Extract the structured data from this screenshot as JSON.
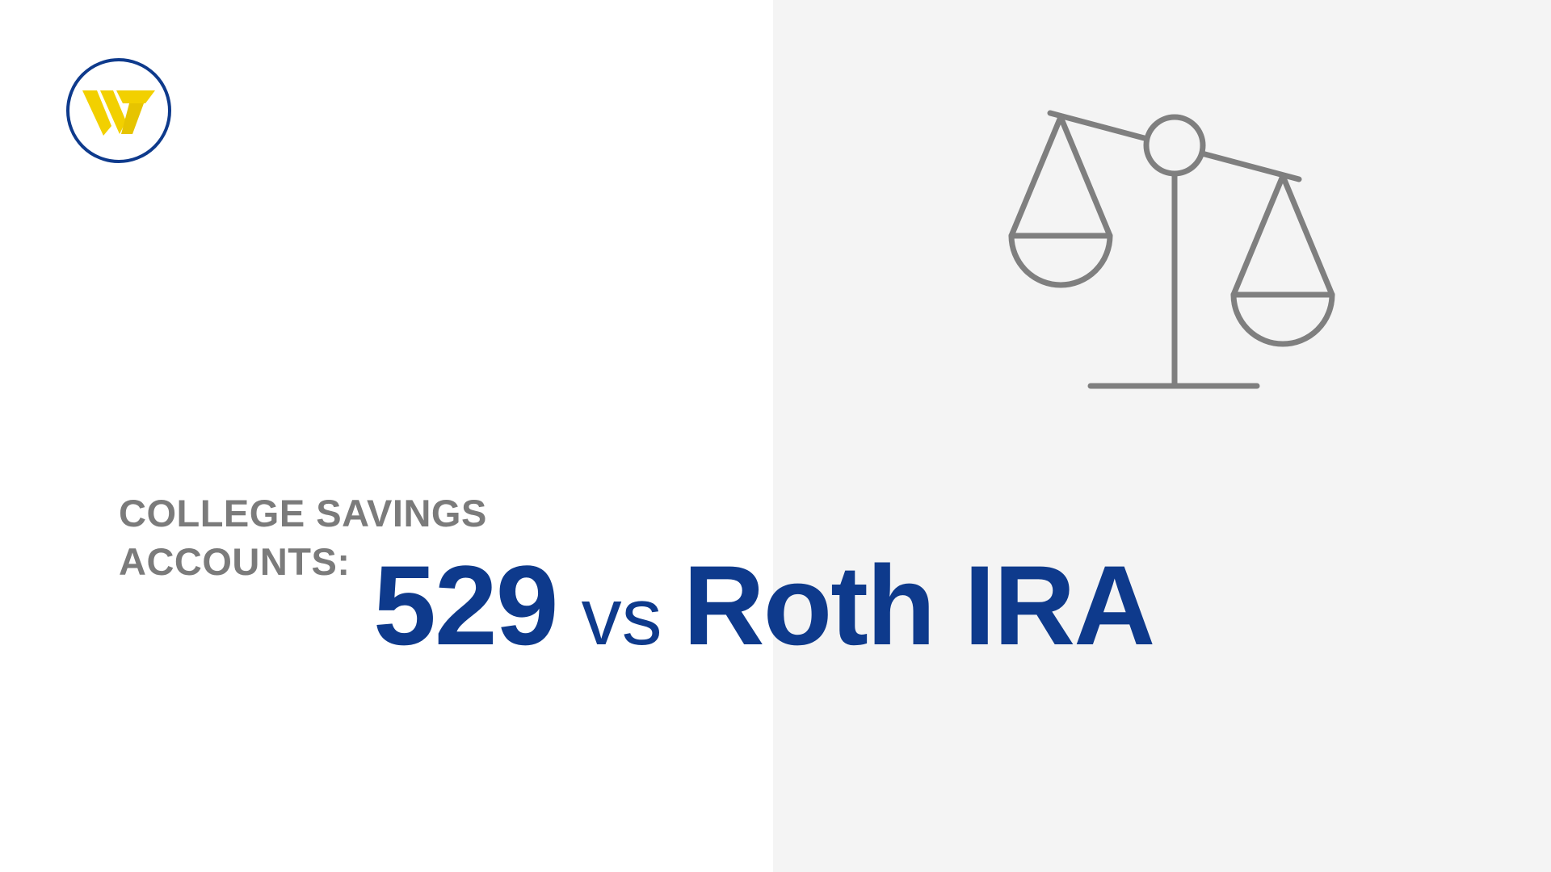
{
  "slide": {
    "subtitle": "COLLEGE SAVINGS\nACCOUNTS:",
    "headline_left": "529",
    "headline_vs": "vs",
    "headline_right": "Roth IRA"
  },
  "icons": {
    "logo": "webster-w-logo",
    "scale": "balance-scale-icon"
  },
  "colors": {
    "brand_blue": "#0e3a8c",
    "brand_yellow": "#f2d000",
    "subtitle_gray": "#7b7b7b",
    "icon_gray": "#7f7f7f",
    "panel_gray": "#f4f4f4"
  }
}
